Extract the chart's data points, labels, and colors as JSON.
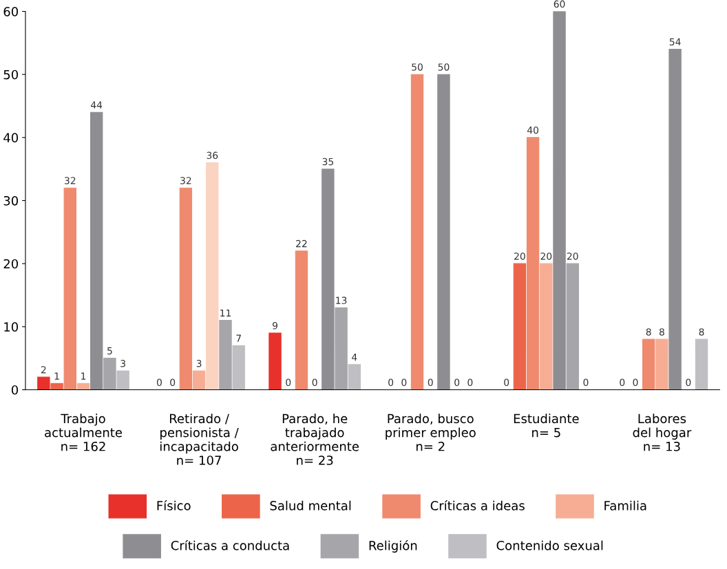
{
  "chart_data": {
    "type": "bar",
    "categories": [
      "Trabajo\nactualmente\nn= 162",
      "Retirado /\npensionista /\nincapacitado\nn= 107",
      "Parado, he\ntrabajado\nanteriormente\nn= 23",
      "Parado, busco\nprimer empleo\nn= 2",
      "Estudiante\nn= 5",
      "Labores\ndel hogar\nn= 13"
    ],
    "series": [
      {
        "name": "Físico",
        "color": "#e8312b",
        "values": [
          2,
          0,
          9,
          0,
          0,
          0
        ]
      },
      {
        "name": "Salud mental",
        "color": "#ec6449",
        "values": [
          1,
          0,
          0,
          0,
          20,
          0
        ]
      },
      {
        "name": "Críticas a ideas",
        "color": "#ef8a6e",
        "values": [
          32,
          32,
          22,
          50,
          40,
          8
        ]
      },
      {
        "name": "Familia",
        "color": "#f6ad94",
        "values": [
          1,
          3,
          0,
          0,
          20,
          8
        ]
      },
      {
        "name": "Críticas a conducta",
        "color": "#8e8e92",
        "colors": [
          "#8e8e92",
          "#fbd3c1",
          "#8e8e92",
          "#8e8e92",
          "#8e8e92",
          "#8e8e92"
        ],
        "values": [
          44,
          36,
          35,
          50,
          60,
          54
        ]
      },
      {
        "name": "Religión",
        "color": "#a6a6aa",
        "values": [
          5,
          11,
          13,
          0,
          20,
          0
        ]
      },
      {
        "name": "Contenido sexual",
        "color": "#bfbfc3",
        "values": [
          3,
          7,
          4,
          0,
          0,
          8
        ]
      }
    ],
    "ylim": [
      0,
      60
    ],
    "yticks": [
      0,
      10,
      20,
      30,
      40,
      50,
      60
    ],
    "data_labels": true,
    "grid": false,
    "legend": "bottom"
  }
}
